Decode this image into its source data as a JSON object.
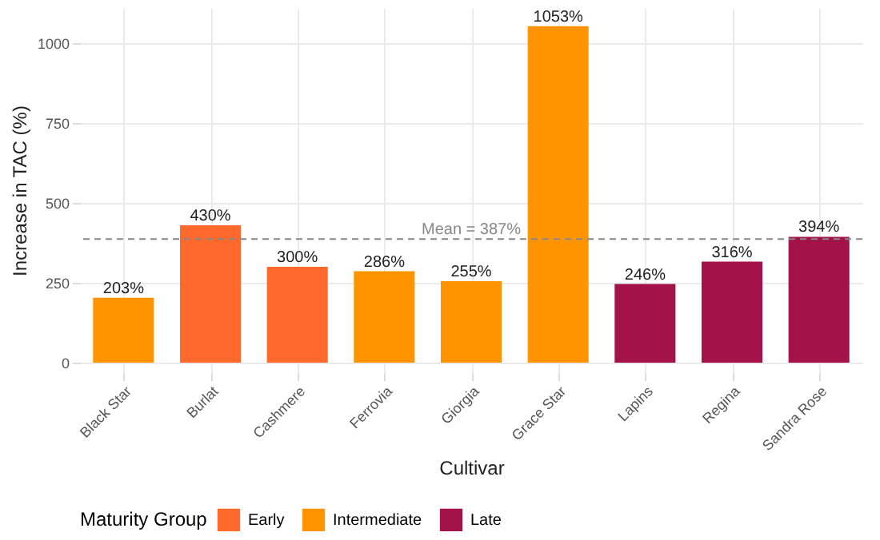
{
  "chart_data": {
    "type": "bar",
    "xlabel": "Cultivar",
    "ylabel": "Increase in TAC (%)",
    "legend_title": "Maturity Group",
    "categories": [
      "Black Star",
      "Burlat",
      "Cashmere",
      "Ferrovia",
      "Giorgia",
      "Grace Star",
      "Lapins",
      "Regina",
      "Sandra Rose"
    ],
    "series": [
      {
        "name": "Early",
        "color": "#ff6a2c",
        "values": [
          null,
          430,
          300,
          null,
          null,
          null,
          null,
          null,
          null
        ],
        "value_labels": [
          null,
          "430%",
          "300%",
          null,
          null,
          null,
          null,
          null,
          null
        ]
      },
      {
        "name": "Intermediate",
        "color": "#ff9400",
        "values": [
          203,
          null,
          null,
          286,
          255,
          1053,
          null,
          null,
          null
        ],
        "value_labels": [
          "203%",
          null,
          null,
          "286%",
          "255%",
          "1053%",
          null,
          null,
          null
        ]
      },
      {
        "name": "Late",
        "color": "#a31249",
        "values": [
          null,
          null,
          null,
          null,
          null,
          null,
          246,
          316,
          394
        ],
        "value_labels": [
          null,
          null,
          null,
          null,
          null,
          null,
          "246%",
          "316%",
          "394%"
        ]
      }
    ],
    "ylim": [
      -30,
      1110
    ],
    "yticks": [
      0,
      250,
      500,
      750,
      1000
    ],
    "grid": true,
    "legend": "bottom",
    "ref_lines": [
      {
        "axis": "y",
        "value": 387,
        "label": "Mean = 387%",
        "color": "#888888",
        "line_style": "dashed"
      }
    ]
  }
}
